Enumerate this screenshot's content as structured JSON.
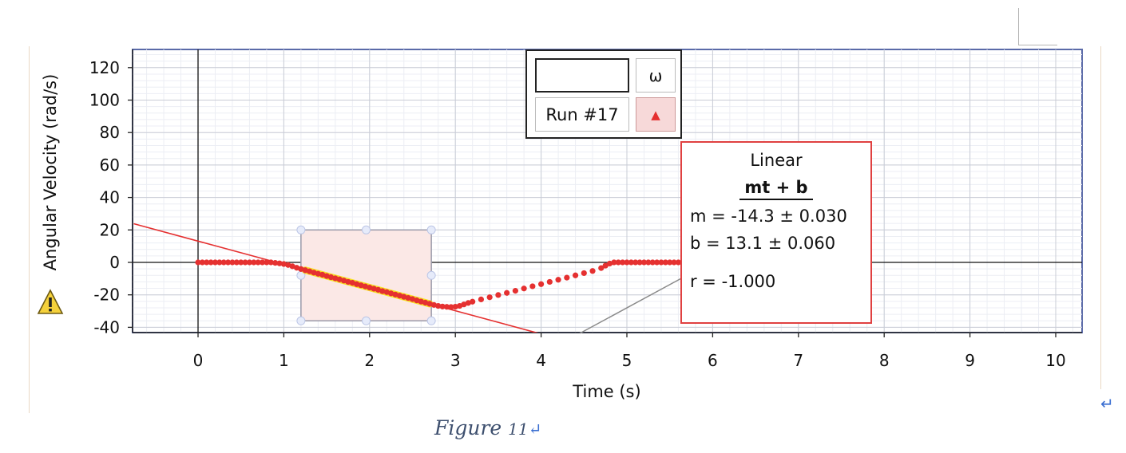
{
  "chart_data": {
    "type": "scatter",
    "xlabel": "Time (s)",
    "ylabel": "Angular Velocity (rad/s)",
    "xlim": [
      -0.75,
      10.3
    ],
    "ylim": [
      -45,
      130
    ],
    "xticks": [
      "0",
      "1",
      "2",
      "3",
      "4",
      "5",
      "6",
      "7",
      "8",
      "9",
      "10"
    ],
    "yticks": [
      "120",
      "100",
      "80",
      "60",
      "40",
      "20",
      "0",
      "-20",
      "-40"
    ],
    "grid": true,
    "series": [
      {
        "name": "Run #17",
        "color": "#e53030",
        "marker": "circle",
        "points": [
          [
            0.0,
            0
          ],
          [
            0.05,
            0
          ],
          [
            0.1,
            0
          ],
          [
            0.15,
            0
          ],
          [
            0.2,
            0
          ],
          [
            0.25,
            0
          ],
          [
            0.3,
            0
          ],
          [
            0.35,
            0
          ],
          [
            0.4,
            0
          ],
          [
            0.45,
            0
          ],
          [
            0.5,
            0
          ],
          [
            0.55,
            0
          ],
          [
            0.6,
            0
          ],
          [
            0.65,
            0
          ],
          [
            0.7,
            0
          ],
          [
            0.75,
            0
          ],
          [
            0.8,
            0
          ],
          [
            0.85,
            0
          ],
          [
            0.9,
            -0.3
          ],
          [
            0.95,
            -0.6
          ],
          [
            1.0,
            -1.0
          ],
          [
            1.05,
            -1.6
          ],
          [
            1.1,
            -2.4
          ],
          [
            1.15,
            -3.3
          ],
          [
            1.2,
            -4.1
          ],
          [
            1.25,
            -4.8
          ],
          [
            1.3,
            -5.5
          ],
          [
            1.35,
            -6.3
          ],
          [
            1.4,
            -7.0
          ],
          [
            1.45,
            -7.6
          ],
          [
            1.5,
            -8.4
          ],
          [
            1.55,
            -9.1
          ],
          [
            1.6,
            -9.8
          ],
          [
            1.65,
            -10.5
          ],
          [
            1.7,
            -11.2
          ],
          [
            1.75,
            -12.0
          ],
          [
            1.8,
            -12.6
          ],
          [
            1.85,
            -13.4
          ],
          [
            1.9,
            -14.1
          ],
          [
            1.95,
            -14.8
          ],
          [
            2.0,
            -15.5
          ],
          [
            2.05,
            -16.2
          ],
          [
            2.1,
            -16.9
          ],
          [
            2.15,
            -17.7
          ],
          [
            2.2,
            -18.3
          ],
          [
            2.25,
            -19.1
          ],
          [
            2.3,
            -19.8
          ],
          [
            2.35,
            -20.5
          ],
          [
            2.4,
            -21.2
          ],
          [
            2.45,
            -21.9
          ],
          [
            2.5,
            -22.6
          ],
          [
            2.55,
            -23.4
          ],
          [
            2.6,
            -24.1
          ],
          [
            2.65,
            -24.8
          ],
          [
            2.7,
            -25.5
          ],
          [
            2.75,
            -26.2
          ],
          [
            2.8,
            -26.8
          ],
          [
            2.85,
            -27.2
          ],
          [
            2.9,
            -27.4
          ],
          [
            2.95,
            -27.5
          ],
          [
            3.0,
            -27.3
          ],
          [
            3.05,
            -26.8
          ],
          [
            3.1,
            -25.9
          ],
          [
            3.15,
            -25.0
          ],
          [
            3.2,
            -24.2
          ],
          [
            3.3,
            -22.8
          ],
          [
            3.4,
            -21.5
          ],
          [
            3.5,
            -20.1
          ],
          [
            3.6,
            -18.8
          ],
          [
            3.7,
            -17.5
          ],
          [
            3.8,
            -16.1
          ],
          [
            3.9,
            -14.7
          ],
          [
            4.0,
            -13.4
          ],
          [
            4.1,
            -12.0
          ],
          [
            4.2,
            -10.7
          ],
          [
            4.3,
            -9.4
          ],
          [
            4.4,
            -8.0
          ],
          [
            4.5,
            -6.6
          ],
          [
            4.6,
            -5.3
          ],
          [
            4.7,
            -3.5
          ],
          [
            4.75,
            -2.0
          ],
          [
            4.8,
            -0.7
          ],
          [
            4.85,
            0
          ],
          [
            4.9,
            0
          ],
          [
            4.95,
            0
          ],
          [
            5.0,
            0
          ],
          [
            5.05,
            0
          ],
          [
            5.1,
            0
          ],
          [
            5.15,
            0
          ],
          [
            5.2,
            0
          ],
          [
            5.25,
            0
          ],
          [
            5.3,
            0
          ],
          [
            5.35,
            0
          ],
          [
            5.4,
            0
          ],
          [
            5.45,
            0
          ],
          [
            5.5,
            0
          ],
          [
            5.55,
            0
          ],
          [
            5.6,
            0
          ],
          [
            5.65,
            0
          ],
          [
            5.7,
            0
          ],
          [
            5.75,
            0
          ],
          [
            5.8,
            0
          ],
          [
            5.85,
            0
          ],
          [
            5.9,
            0
          ]
        ]
      }
    ],
    "fit": {
      "type": "linear",
      "m": -14.3,
      "b": 13.1,
      "color": "#e53030",
      "highlight_range": [
        1.25,
        2.7
      ],
      "highlight_color": "#f7e024"
    },
    "selection": {
      "x": [
        1.2,
        2.72
      ],
      "y": [
        -36,
        20
      ],
      "fill": "#fbe8e6"
    }
  },
  "legend": {
    "symbol": "ω",
    "run": "Run #17",
    "marker": "▲"
  },
  "fit_box": {
    "title": "Linear",
    "equation": "mt + b",
    "m_line": "m = -14.3 ± 0.030",
    "b_line": "b  = 13.1  ± 0.060",
    "r_line": "r = -1.000"
  },
  "caption": {
    "text": "Figure ",
    "number": "11",
    "mark": "↵"
  },
  "page_mark": "↵"
}
